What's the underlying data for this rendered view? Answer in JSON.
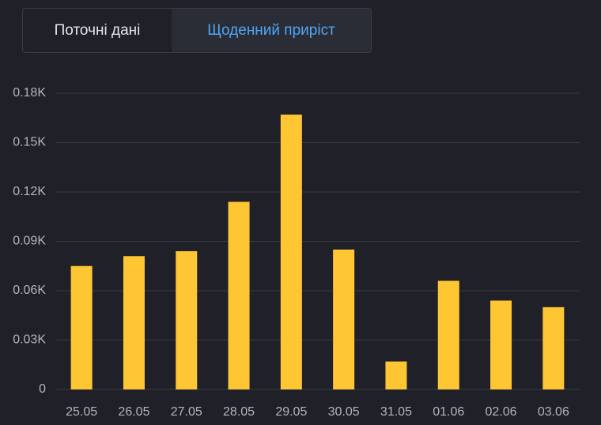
{
  "tabs": [
    "Поточні дані",
    "Щоденний приріст"
  ],
  "chart_data": {
    "type": "bar",
    "categories": [
      "25.05",
      "26.05",
      "27.05",
      "28.05",
      "29.05",
      "30.05",
      "31.05",
      "01.06",
      "02.06",
      "03.06"
    ],
    "values": [
      75,
      81,
      84,
      114,
      167,
      85,
      17,
      66,
      54,
      50
    ],
    "color": "#ffc634",
    "ylim": [
      0,
      180
    ],
    "yticks": [
      0,
      {
        "value": 30,
        "label": "0.03K"
      },
      {
        "value": 60,
        "label": "0.06K"
      },
      {
        "value": 90,
        "label": "0.09K"
      },
      {
        "value": 120,
        "label": "0.12K"
      },
      {
        "value": 150,
        "label": "0.15K"
      },
      {
        "value": 180,
        "label": "0.18K"
      }
    ],
    "grid": true
  }
}
